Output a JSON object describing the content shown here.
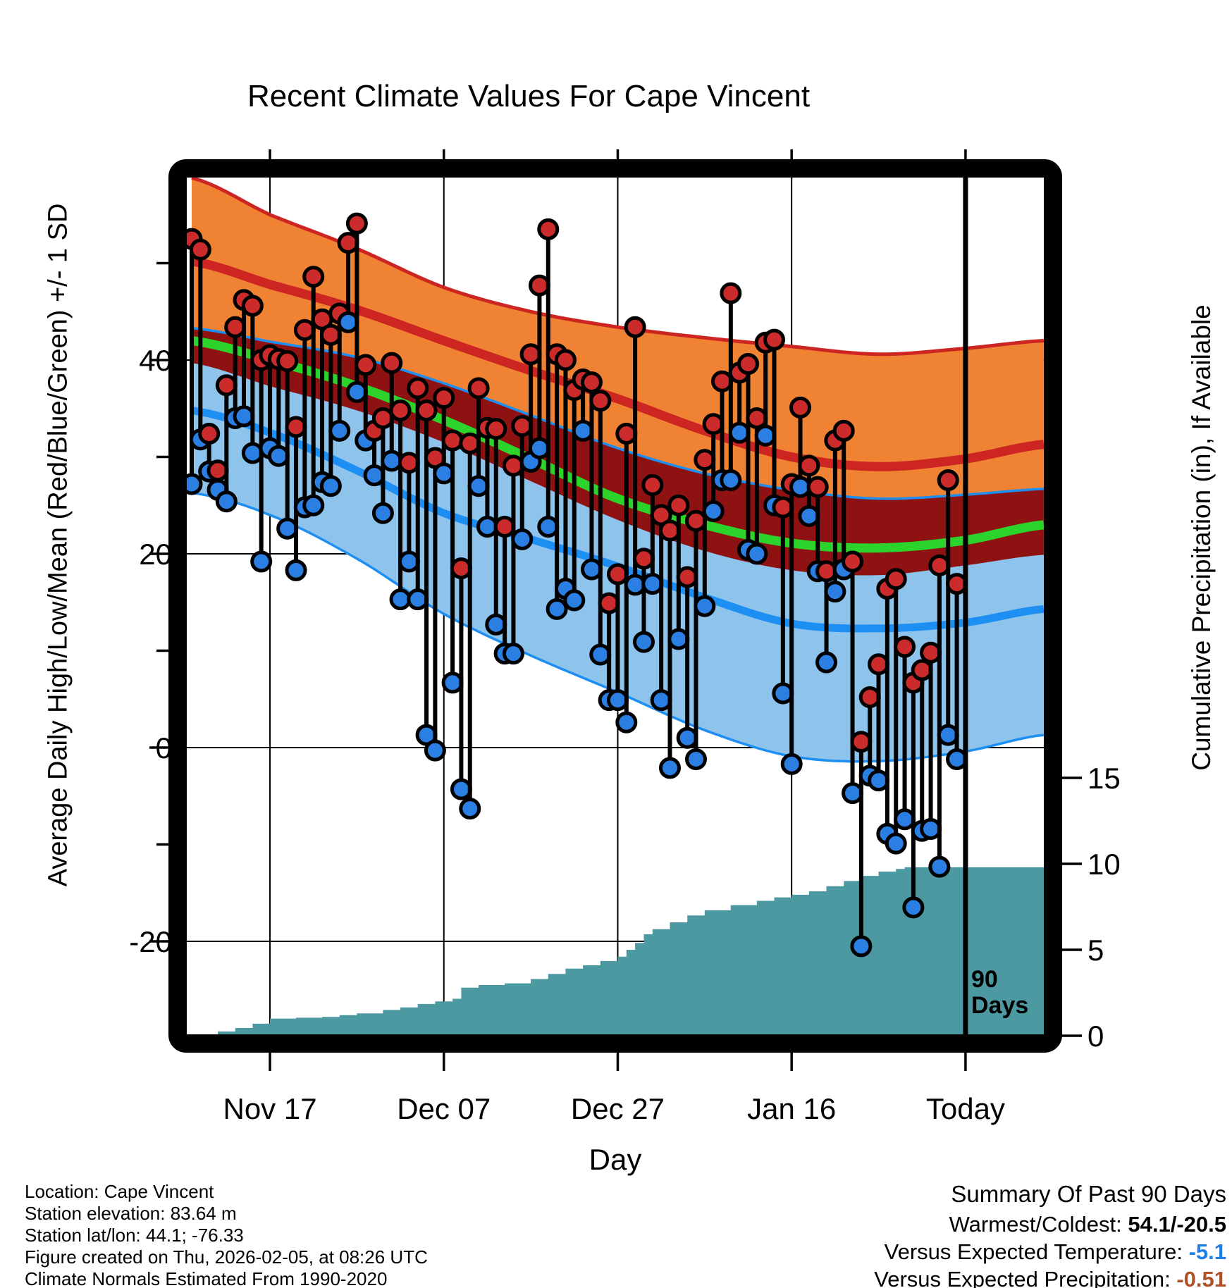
{
  "title": "Recent Climate Values For Cape Vincent",
  "axes": {
    "y_left_label": "Average Daily High/Low/Mean (Red/Blue/Green) +/- 1 SD",
    "y_right_label": "Cumulative Precipitation (in), If Available",
    "x_label": "Day",
    "y_left_ticks": [
      40,
      20,
      0,
      -20
    ],
    "y_left_minor_ticks": [
      50,
      30,
      10,
      -10
    ],
    "y_right_ticks": [
      15,
      10,
      5,
      0
    ],
    "x_ticks": [
      {
        "day": 10,
        "label": "Nov 17"
      },
      {
        "day": 30,
        "label": "Dec 07"
      },
      {
        "day": 50,
        "label": "Dec 27"
      },
      {
        "day": 70,
        "label": "Jan 16"
      },
      {
        "day": 90,
        "label": "Today"
      }
    ]
  },
  "annotation_90days": {
    "line1": "90",
    "line2": "Days",
    "day": 90
  },
  "footer_left": [
    "Location: Cape Vincent",
    "Station elevation: 83.64 m",
    "Station lat/lon: 44.1; -76.33",
    "Figure created on Thu, 2026-02-05, at 08:26 UTC",
    "Climate Normals Estimated From 1990-2020"
  ],
  "summary": {
    "heading": "Summary Of Past 90 Days",
    "warmest_coldest_label": "Warmest/Coldest:",
    "warmest_coldest_value": "54.1/-20.5",
    "vs_temp_label": "Versus Expected Temperature:",
    "vs_temp_value": "-5.1",
    "vs_precip_label": "Versus Expected Precipitation:",
    "vs_precip_value": "-0.51"
  },
  "colors": {
    "orange_band": "#f08233",
    "dark_red_overlap": "#8e1212",
    "red_mean_line": "#cc2522",
    "green_mean_line": "#2bd32b",
    "light_blue_band": "#8ec3eb",
    "blue_mean_line": "#1e8ff2",
    "dot_red": "#cc2b2b",
    "dot_blue": "#2b7fe3",
    "teal_precip": "#4d99a2",
    "summary_temp_value": "#1e7fe8",
    "summary_precip_value": "#b05228",
    "frame": "#000000"
  },
  "chart_data": {
    "type": "combo (daily high/low stem-dots + climatology band curves + cumulative precipitation area)",
    "title": "Recent Climate Values For Cape Vincent",
    "xlabel": "Day",
    "ylabel_left": "Average Daily High/Low/Mean (Red/Blue/Green) +/- 1 SD",
    "ylabel_right": "Cumulative Precipitation (in), If Available",
    "y_left_range": [
      -29.5,
      58.8
    ],
    "y_right_range": [
      0,
      49.8
    ],
    "grid": true,
    "n_days": 89,
    "daily_high": [
      52.5,
      51.4,
      32.4,
      28.6,
      37.4,
      43.4,
      46.2,
      45.6,
      40.0,
      40.5,
      40.1,
      39.9,
      33.1,
      43.1,
      48.6,
      44.2,
      42.6,
      44.8,
      52.1,
      54.1,
      39.5,
      32.7,
      34.0,
      39.7,
      34.8,
      29.4,
      37.1,
      34.8,
      29.9,
      36.1,
      31.7,
      18.5,
      31.4,
      37.1,
      33.0,
      32.9,
      22.8,
      29.1,
      33.2,
      40.6,
      47.7,
      53.5,
      40.6,
      40.0,
      36.9,
      38.0,
      37.7,
      35.8,
      14.9,
      17.9,
      32.4,
      43.4,
      19.5,
      27.1,
      24.0,
      22.4,
      25.0,
      17.6,
      23.4,
      29.7,
      33.4,
      37.8,
      46.9,
      38.7,
      39.6,
      34.0,
      41.8,
      42.1,
      24.8,
      27.2,
      35.1,
      29.1,
      26.9,
      18.2,
      31.7,
      32.7,
      19.2,
      0.6,
      5.2,
      8.6,
      16.4,
      17.4,
      10.4,
      6.7,
      8.0,
      9.8,
      18.8,
      27.6,
      16.9
    ],
    "daily_low": [
      27.2,
      31.8,
      28.5,
      26.6,
      25.4,
      34.0,
      34.2,
      30.4,
      19.2,
      30.9,
      30.1,
      22.6,
      18.3,
      24.8,
      25.0,
      27.4,
      27.0,
      32.7,
      43.9,
      36.7,
      31.7,
      28.1,
      24.2,
      29.6,
      15.3,
      19.2,
      15.3,
      1.3,
      -0.3,
      28.3,
      6.7,
      -4.3,
      -6.3,
      27.0,
      22.8,
      12.7,
      9.7,
      9.7,
      21.5,
      29.5,
      30.9,
      22.8,
      14.3,
      16.4,
      15.2,
      32.7,
      18.4,
      9.6,
      4.9,
      4.9,
      2.6,
      16.8,
      10.9,
      16.9,
      4.9,
      -2.1,
      11.2,
      1.0,
      -1.2,
      14.6,
      24.4,
      27.6,
      27.6,
      32.5,
      20.4,
      20.0,
      32.2,
      25.0,
      5.6,
      -1.7,
      26.9,
      23.9,
      18.2,
      8.8,
      16.1,
      18.4,
      -4.7,
      -20.5,
      -2.9,
      -3.4,
      -8.9,
      -9.9,
      -7.4,
      -16.5,
      -8.6,
      -8.4,
      -12.3,
      1.3,
      -1.2
    ],
    "bands": {
      "days": [
        1,
        10,
        20,
        30,
        40,
        50,
        60,
        70,
        80,
        90,
        99
      ],
      "high_plus_sd": [
        58.8,
        55.0,
        51.5,
        47.5,
        45.0,
        43.4,
        42.3,
        41.4,
        40.6,
        41.2,
        42.0
      ],
      "high_mean": [
        50.2,
        47.8,
        45.2,
        42.0,
        38.9,
        36.0,
        32.7,
        30.0,
        29.0,
        29.8,
        31.3
      ],
      "high_minus_sd": [
        39.7,
        37.3,
        34.8,
        31.5,
        27.5,
        23.5,
        20.3,
        18.3,
        17.8,
        18.8,
        19.9
      ],
      "low_plus_sd": [
        43.3,
        41.9,
        40.3,
        37.6,
        34.3,
        30.9,
        28.3,
        26.6,
        25.7,
        26.1,
        26.7
      ],
      "low_mean": [
        34.8,
        32.5,
        28.6,
        24.2,
        21.5,
        18.7,
        15.5,
        12.8,
        12.3,
        12.9,
        14.3
      ],
      "low_minus_sd": [
        26.3,
        24.0,
        19.5,
        13.8,
        9.5,
        5.7,
        1.8,
        -0.9,
        -1.4,
        -0.4,
        1.3
      ],
      "mean": [
        42.0,
        40.0,
        37.3,
        33.8,
        29.8,
        25.7,
        23.0,
        21.1,
        20.6,
        21.4,
        23.0
      ]
    },
    "cumulative_precip_breakpoints": {
      "days": [
        1,
        2,
        4,
        6,
        8,
        10,
        13,
        16,
        18,
        20,
        23,
        25,
        27,
        29,
        31,
        32,
        34,
        37,
        40,
        42,
        44,
        46,
        48,
        50,
        51,
        52,
        53,
        54,
        56,
        58,
        60,
        63,
        66,
        68,
        70,
        72,
        74,
        76,
        78,
        80,
        82,
        83,
        99
      ],
      "inches": [
        0,
        0.05,
        0.25,
        0.45,
        0.7,
        1.0,
        1.05,
        1.1,
        1.2,
        1.3,
        1.5,
        1.65,
        1.85,
        2.0,
        2.15,
        2.8,
        2.95,
        3.05,
        3.3,
        3.6,
        3.9,
        4.1,
        4.35,
        4.6,
        5.0,
        5.4,
        5.9,
        6.2,
        6.6,
        7.0,
        7.3,
        7.6,
        7.85,
        8.05,
        8.2,
        8.4,
        8.7,
        9.0,
        9.3,
        9.55,
        9.7,
        9.8,
        9.8
      ]
    },
    "legend_position": "none"
  }
}
